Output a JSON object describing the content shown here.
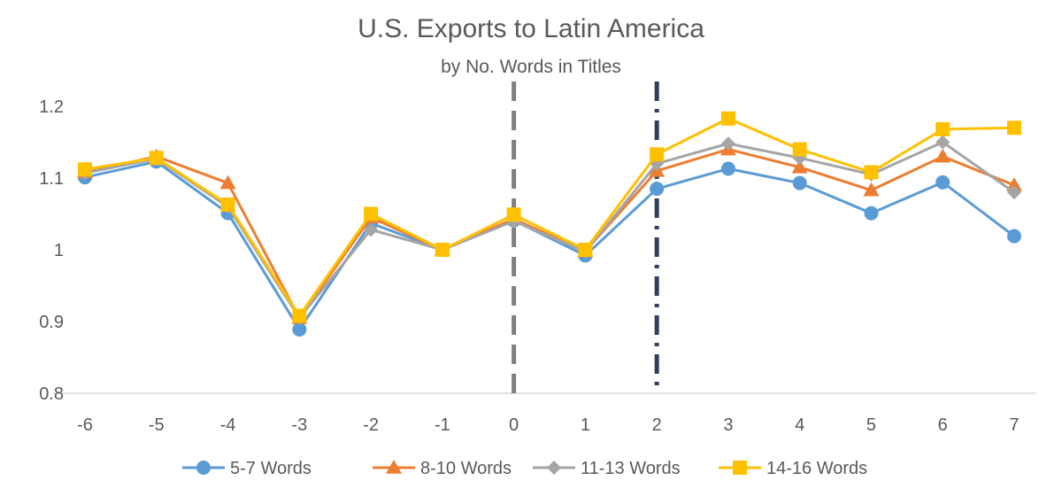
{
  "chart_data": {
    "type": "line",
    "title": "U.S. Exports to Latin America",
    "subtitle": "by No. Words in Titles",
    "xlabel": "",
    "ylabel": "",
    "x": [
      -6,
      -5,
      -4,
      -3,
      -2,
      -1,
      0,
      1,
      2,
      3,
      4,
      5,
      6,
      7
    ],
    "x_tick_labels": [
      "-6",
      "-5",
      "-4",
      "-3",
      "-2",
      "-1",
      "0",
      "1",
      "2",
      "3",
      "4",
      "5",
      "6",
      "7"
    ],
    "ylim": [
      0.8,
      1.2
    ],
    "y_ticks": [
      0.8,
      0.9,
      1.0,
      1.1,
      1.2
    ],
    "y_tick_labels": [
      "0.8",
      "0.9",
      "1",
      "1.1",
      "1.2"
    ],
    "grid": false,
    "legend_position": "bottom",
    "reference_lines": [
      {
        "x": 0,
        "style": "dashed",
        "color": "#7f7f7f"
      },
      {
        "x": 2,
        "style": "dash-dot",
        "color": "#2f3f5f"
      }
    ],
    "series": [
      {
        "name": "5-7 Words",
        "color": "#5b9bd5",
        "marker": "circle",
        "values": [
          1.101,
          1.123,
          1.051,
          0.889,
          1.037,
          1.0,
          1.041,
          0.992,
          1.085,
          1.113,
          1.093,
          1.051,
          1.094,
          1.019
        ]
      },
      {
        "name": "8-10 Words",
        "color": "#ed7d31",
        "marker": "triangle",
        "values": [
          1.108,
          1.13,
          1.093,
          0.905,
          1.045,
          1.0,
          1.043,
          0.998,
          1.11,
          1.14,
          1.115,
          1.083,
          1.13,
          1.09
        ]
      },
      {
        "name": "11-13 Words",
        "color": "#a5a5a5",
        "marker": "diamond",
        "values": [
          1.107,
          1.127,
          1.06,
          0.905,
          1.028,
          1.0,
          1.04,
          0.997,
          1.12,
          1.148,
          1.128,
          1.105,
          1.15,
          1.08
        ]
      },
      {
        "name": "14-16 Words",
        "color": "#ffc000",
        "marker": "square",
        "values": [
          1.112,
          1.128,
          1.063,
          0.908,
          1.05,
          1.0,
          1.049,
          1.0,
          1.133,
          1.183,
          1.14,
          1.108,
          1.168,
          1.17
        ]
      }
    ]
  }
}
